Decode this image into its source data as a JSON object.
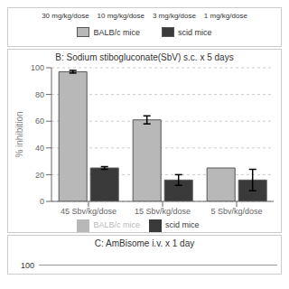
{
  "chart_data": {
    "type": "bar",
    "title": "B:  Sodium stibogluconate(SbV) s.c. x 5 days",
    "categories": [
      "45 Sbv/kg/dose",
      "15 Sbv/kg/dose",
      "5 Sbv/kg/dose"
    ],
    "series": [
      {
        "name": "BALB/c mice",
        "color": "#b8b8b8",
        "values": [
          97,
          61,
          25
        ],
        "errors": [
          1,
          3,
          0
        ]
      },
      {
        "name": "scid mice",
        "color": "#3a3a3a",
        "values": [
          25,
          16,
          16
        ],
        "errors": [
          1,
          4,
          8
        ]
      }
    ],
    "ylabel": "% inhibition",
    "ylim": [
      0,
      100
    ],
    "yticks": [
      0,
      20,
      40,
      60,
      80,
      100
    ],
    "grid": true,
    "legend": "bottom",
    "annotations": [
      "30 mg/kg/dose    10 mg/kg/dose    3 mg/kg/dose    1 mg/kg/dose",
      "C:  AmBisome i.v. x 1 day",
      "100"
    ]
  }
}
